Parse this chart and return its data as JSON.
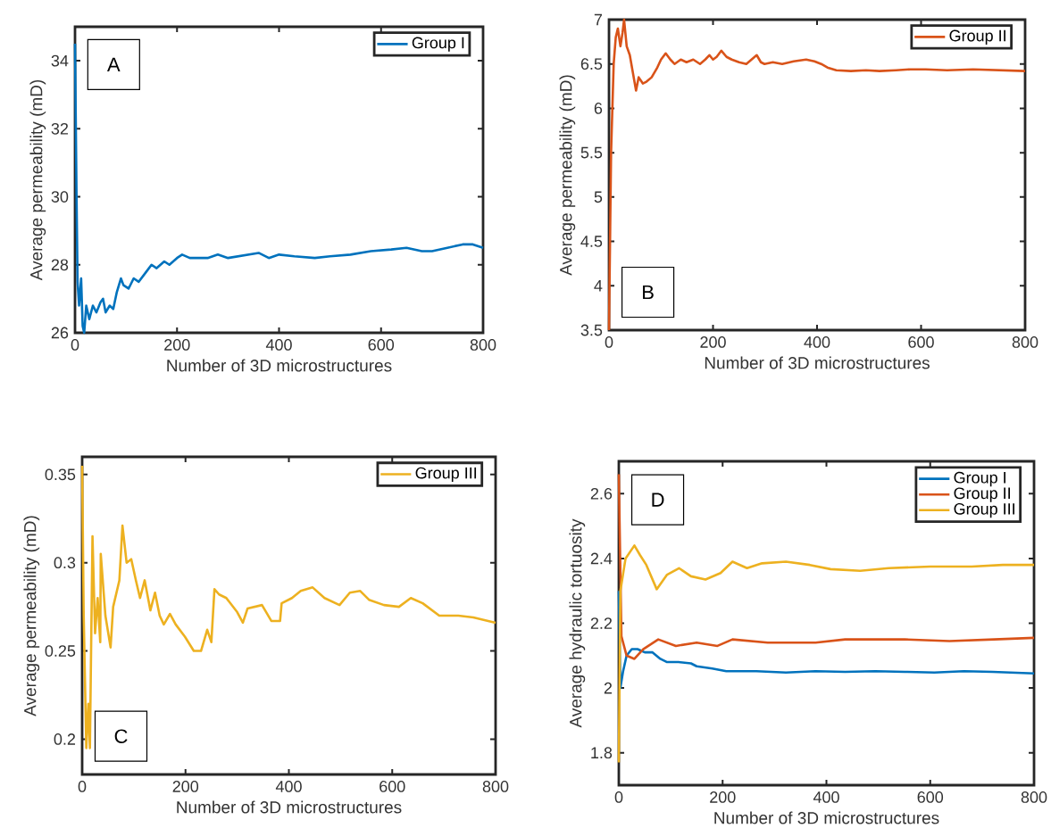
{
  "chart_data": [
    {
      "type": "line",
      "xlabel": "Number of 3D microstructures",
      "ylabel": "Average permeability (mD)",
      "xlim": [
        0,
        800
      ],
      "xticks": [
        0,
        200,
        400,
        600,
        800
      ],
      "ylim": [
        26,
        35
      ],
      "yticks": [
        26,
        28,
        30,
        32,
        34
      ],
      "legend": "top right",
      "annotations": [
        "A"
      ],
      "series": [
        {
          "name": "Group I",
          "color": "#0072bd",
          "x": [
            0,
            3,
            5,
            8,
            12,
            15,
            18,
            22,
            28,
            35,
            42,
            50,
            55,
            60,
            68,
            75,
            82,
            90,
            95,
            105,
            115,
            125,
            140,
            150,
            160,
            175,
            185,
            200,
            210,
            225,
            240,
            260,
            280,
            300,
            320,
            340,
            360,
            380,
            400,
            430,
            470,
            500,
            540,
            580,
            620,
            650,
            680,
            700,
            730,
            760,
            780,
            800
          ],
          "values": [
            34.5,
            30,
            27.5,
            26.8,
            27.6,
            26.2,
            26.0,
            26.8,
            26.4,
            26.8,
            26.6,
            26.9,
            27.0,
            26.6,
            26.8,
            26.7,
            27.2,
            27.6,
            27.4,
            27.3,
            27.6,
            27.5,
            27.8,
            28.0,
            27.9,
            28.1,
            28.0,
            28.2,
            28.3,
            28.2,
            28.2,
            28.2,
            28.3,
            28.2,
            28.25,
            28.3,
            28.35,
            28.2,
            28.3,
            28.25,
            28.2,
            28.25,
            28.3,
            28.4,
            28.45,
            28.5,
            28.4,
            28.4,
            28.5,
            28.6,
            28.6,
            28.5
          ]
        }
      ]
    },
    {
      "type": "line",
      "xlabel": "Number of 3D microstructures",
      "ylabel": "Average permeability (mD)",
      "xlim": [
        0,
        800
      ],
      "xticks": [
        0,
        200,
        400,
        600,
        800
      ],
      "ylim": [
        3.5,
        7
      ],
      "yticks": [
        3.5,
        4,
        4.5,
        5,
        5.5,
        6,
        6.5,
        7
      ],
      "legend": "top right",
      "annotations": [
        "B"
      ],
      "series": [
        {
          "name": "Group II",
          "color": "#d95319",
          "x": [
            0,
            4,
            9,
            13,
            17,
            22,
            26,
            29,
            34,
            40,
            46,
            52,
            57,
            65,
            72,
            82,
            92,
            100,
            109,
            118,
            126,
            138,
            149,
            162,
            175,
            185,
            193,
            200,
            207,
            216,
            226,
            236,
            250,
            264,
            274,
            284,
            292,
            299,
            315,
            333,
            355,
            379,
            395,
            408,
            420,
            437,
            465,
            494,
            520,
            552,
            580,
            609,
            650,
            700,
            750,
            800
          ],
          "values": [
            3.5,
            5.5,
            6.5,
            6.8,
            6.9,
            6.7,
            6.85,
            7.0,
            6.7,
            6.6,
            6.4,
            6.2,
            6.35,
            6.28,
            6.3,
            6.35,
            6.45,
            6.55,
            6.62,
            6.55,
            6.5,
            6.55,
            6.52,
            6.55,
            6.5,
            6.55,
            6.6,
            6.55,
            6.58,
            6.65,
            6.58,
            6.55,
            6.52,
            6.5,
            6.55,
            6.6,
            6.52,
            6.5,
            6.52,
            6.5,
            6.53,
            6.55,
            6.53,
            6.5,
            6.46,
            6.43,
            6.42,
            6.43,
            6.42,
            6.43,
            6.44,
            6.44,
            6.43,
            6.44,
            6.43,
            6.42
          ]
        }
      ]
    },
    {
      "type": "line",
      "xlabel": "Number of 3D microstructures",
      "ylabel": "Average permeability (mD)",
      "xlim": [
        0,
        800
      ],
      "xticks": [
        0,
        200,
        400,
        600,
        800
      ],
      "ylim": [
        0.18,
        0.36
      ],
      "yticks": [
        0.2,
        0.25,
        0.3,
        0.35
      ],
      "legend": "top right",
      "annotations": [
        "C"
      ],
      "series": [
        {
          "name": "Group III",
          "color": "#edb120",
          "x": [
            0,
            3,
            8,
            12,
            15,
            20,
            25,
            30,
            35,
            36,
            45,
            55,
            60,
            72,
            78,
            86,
            95,
            104,
            112,
            121,
            132,
            141,
            150,
            158,
            170,
            181,
            199,
            216,
            230,
            242,
            250,
            256,
            265,
            279,
            300,
            311,
            320,
            348,
            366,
            383,
            386,
            406,
            423,
            446,
            469,
            498,
            518,
            538,
            555,
            584,
            613,
            636,
            659,
            691,
            728,
            757,
            800
          ],
          "values": [
            0.355,
            0.27,
            0.195,
            0.22,
            0.195,
            0.315,
            0.26,
            0.28,
            0.255,
            0.305,
            0.27,
            0.252,
            0.275,
            0.29,
            0.321,
            0.3,
            0.302,
            0.29,
            0.28,
            0.29,
            0.273,
            0.283,
            0.27,
            0.265,
            0.271,
            0.265,
            0.258,
            0.25,
            0.25,
            0.262,
            0.255,
            0.285,
            0.282,
            0.28,
            0.272,
            0.266,
            0.274,
            0.276,
            0.267,
            0.267,
            0.277,
            0.28,
            0.284,
            0.286,
            0.28,
            0.276,
            0.283,
            0.284,
            0.279,
            0.276,
            0.275,
            0.28,
            0.277,
            0.27,
            0.27,
            0.269,
            0.266
          ]
        }
      ]
    },
    {
      "type": "line",
      "xlabel": "Number of 3D microstructures",
      "ylabel": "Average hydraulic tortuosity",
      "xlim": [
        0,
        800
      ],
      "xticks": [
        0,
        200,
        400,
        600,
        800
      ],
      "ylim": [
        1.7,
        2.7
      ],
      "yticks": [
        1.8,
        2,
        2.2,
        2.4,
        2.6
      ],
      "legend": "top right",
      "annotations": [
        "D"
      ],
      "series": [
        {
          "name": "Group I",
          "color": "#0072bd",
          "x": [
            0,
            3,
            8,
            15,
            25,
            36,
            50,
            65,
            80,
            93,
            115,
            139,
            150,
            180,
            207,
            265,
            322,
            379,
            436,
            494,
            551,
            608,
            665,
            720,
            800
          ],
          "values": [
            2.3,
            2.0,
            2.05,
            2.1,
            2.12,
            2.12,
            2.11,
            2.11,
            2.09,
            2.08,
            2.08,
            2.076,
            2.067,
            2.06,
            2.052,
            2.052,
            2.048,
            2.052,
            2.05,
            2.052,
            2.05,
            2.048,
            2.052,
            2.05,
            2.045
          ]
        },
        {
          "name": "Group II",
          "color": "#d95319",
          "x": [
            0,
            5,
            15,
            30,
            47,
            76,
            110,
            150,
            190,
            219,
            287,
            379,
            436,
            551,
            637,
            723,
            800
          ],
          "values": [
            2.66,
            2.16,
            2.1,
            2.09,
            2.12,
            2.15,
            2.13,
            2.14,
            2.13,
            2.15,
            2.14,
            2.14,
            2.15,
            2.15,
            2.145,
            2.15,
            2.155
          ]
        },
        {
          "name": "Group III",
          "color": "#edb120",
          "x": [
            0,
            3,
            13,
            30,
            41,
            53,
            73,
            93,
            116,
            139,
            167,
            196,
            219,
            247,
            276,
            322,
            368,
            408,
            465,
            520,
            600,
            680,
            740,
            800
          ],
          "values": [
            1.77,
            2.3,
            2.4,
            2.44,
            2.41,
            2.38,
            2.305,
            2.35,
            2.37,
            2.345,
            2.335,
            2.355,
            2.39,
            2.37,
            2.385,
            2.39,
            2.38,
            2.367,
            2.362,
            2.37,
            2.375,
            2.375,
            2.38,
            2.38
          ]
        }
      ]
    }
  ]
}
